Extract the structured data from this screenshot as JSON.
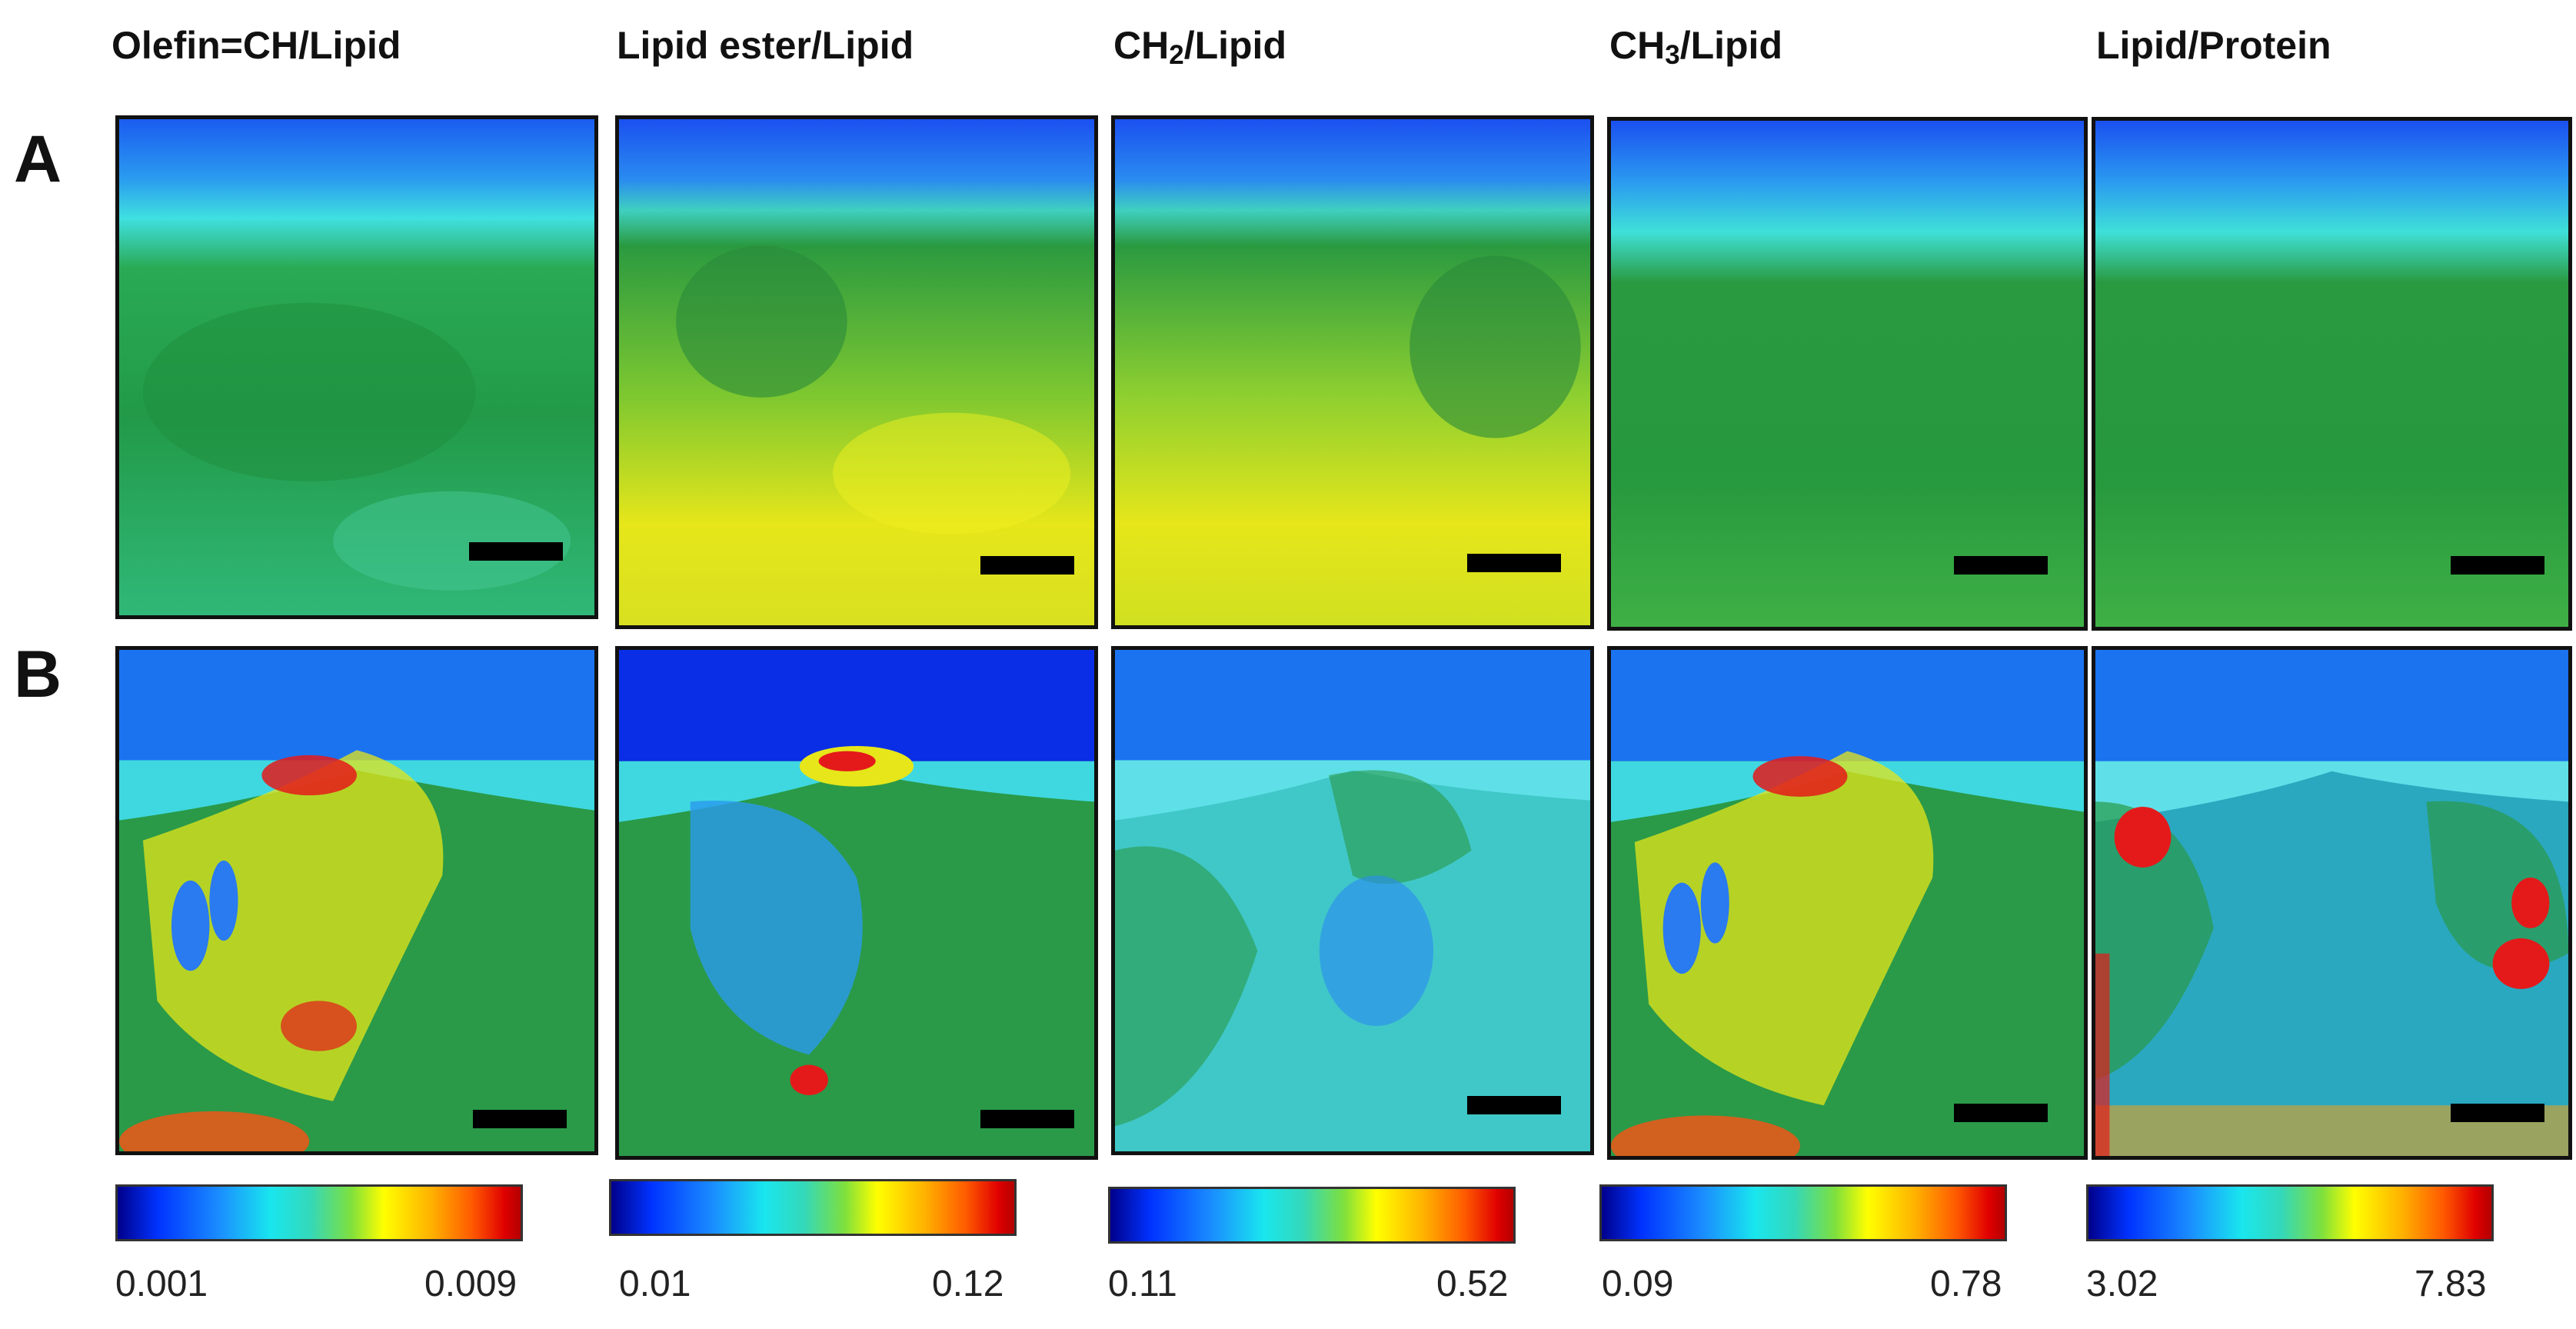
{
  "columns": [
    {
      "title_main": "Olefin=CH/Lipid",
      "title_sub": "",
      "title_rest": "",
      "min": "0.001",
      "max": "0.009"
    },
    {
      "title_main": "Lipid ester/Lipid",
      "title_sub": "",
      "title_rest": "",
      "min": "0.01",
      "max": "0.12"
    },
    {
      "title_main": "CH",
      "title_sub": "2",
      "title_rest": "/Lipid",
      "min": "0.11",
      "max": "0.52"
    },
    {
      "title_main": "CH",
      "title_sub": "3",
      "title_rest": "/Lipid",
      "min": "0.09",
      "max": "0.78"
    },
    {
      "title_main": "Lipid/Protein",
      "title_sub": "",
      "title_rest": "",
      "min": "3.02",
      "max": "7.83"
    }
  ],
  "rows": [
    {
      "label": "A"
    },
    {
      "label": "B"
    }
  ],
  "colors": {
    "sky": "#1b73f0",
    "deep_blue": "#0a2ee6",
    "cyan": "#3fe0e8",
    "green": "#1f9a3a",
    "yellow": "#f2f21a",
    "orange": "#ff9a1a",
    "red": "#e41a1a"
  }
}
